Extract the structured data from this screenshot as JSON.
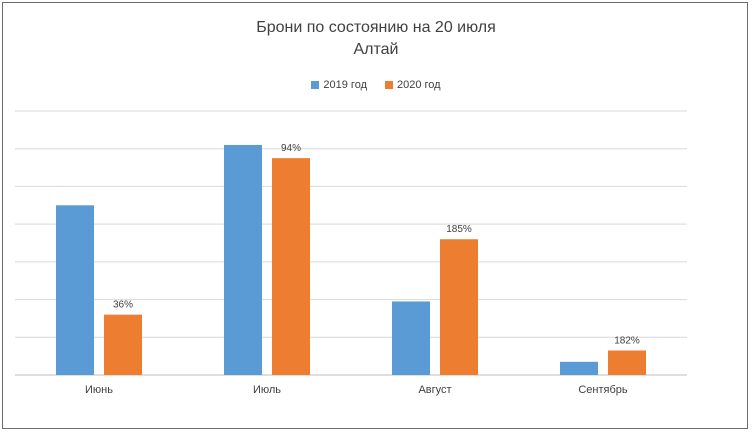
{
  "chart_data": {
    "type": "bar",
    "title": "Брони по состоянию на 20 июля",
    "subtitle": "Алтай",
    "categories": [
      "Июнь",
      "Июль",
      "Август",
      "Сентябрь"
    ],
    "series": [
      {
        "name": "2019 год",
        "color": "#5B9BD5",
        "values": [
          4.5,
          6.1,
          1.95,
          0.35
        ],
        "labels": [
          "",
          "",
          "",
          ""
        ]
      },
      {
        "name": "2020 год",
        "color": "#ED7D31",
        "values": [
          1.6,
          5.75,
          3.6,
          0.65
        ],
        "labels": [
          "36%",
          "94%",
          "185%",
          "182%"
        ]
      }
    ],
    "ylim": [
      0,
      7
    ],
    "grid": true,
    "legend_position": "top"
  }
}
